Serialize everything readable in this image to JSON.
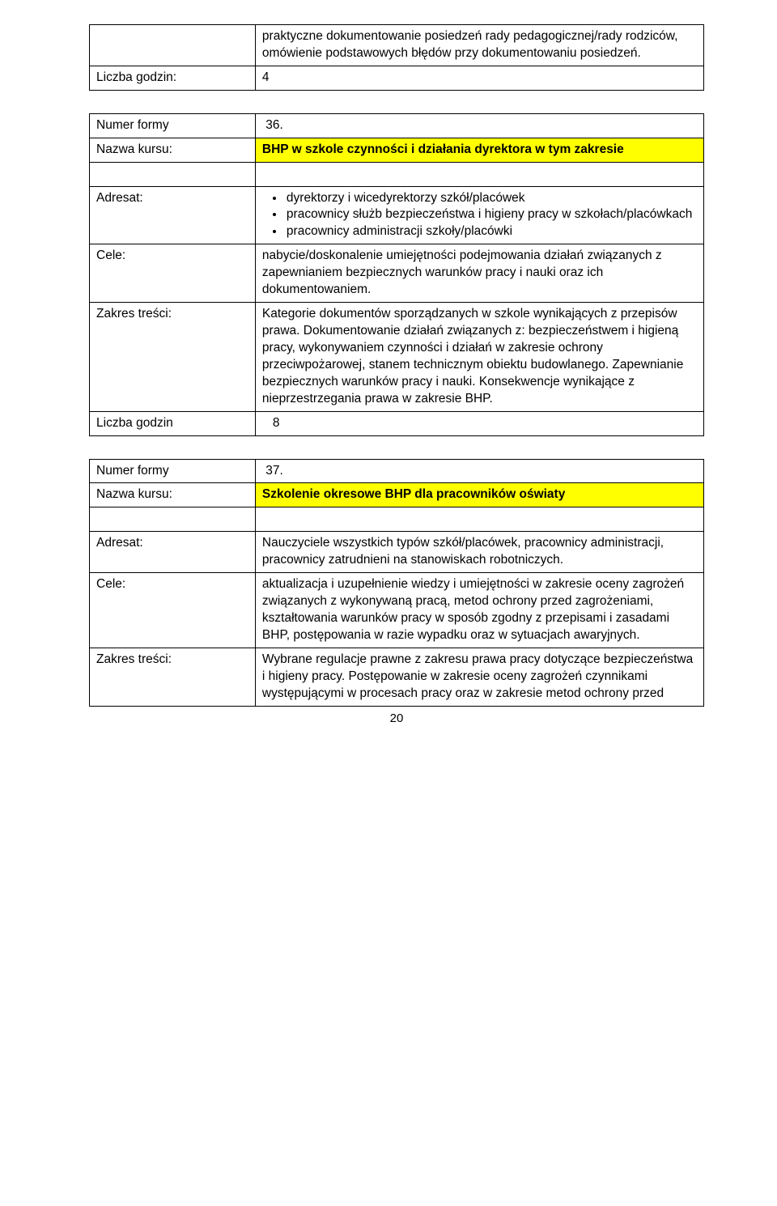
{
  "labels": {
    "liczba_godzin_colon": "Liczba godzin:",
    "liczba_godzin": "Liczba godzin",
    "numer_formy": "Numer formy",
    "nazwa_kursu": "Nazwa kursu:",
    "adresat": "Adresat:",
    "cele": "Cele:",
    "zakres": "Zakres treści:"
  },
  "block1": {
    "top_text": "praktyczne dokumentowanie posiedzeń rady pedagogicznej/rady rodziców, omówienie podstawowych błędów przy dokumentowaniu posiedzeń.",
    "hours": "4"
  },
  "block2": {
    "numer": "36.",
    "nazwa": "BHP w szkole czynności i działania dyrektora w tym zakresie",
    "adresat_items": [
      "dyrektorzy i wicedyrektorzy szkół/placówek",
      "pracownicy służb bezpieczeństwa i higieny pracy w szkołach/placówkach",
      "pracownicy administracji szkoły/placówki"
    ],
    "cele": "nabycie/doskonalenie umiejętności podejmowania działań związanych z zapewnianiem bezpiecznych warunków pracy i nauki oraz ich dokumentowaniem.",
    "zakres": "Kategorie dokumentów sporządzanych w szkole wynikających z przepisów prawa. Dokumentowanie działań związanych z: bezpieczeństwem i higieną pracy, wykonywaniem czynności i działań w zakresie ochrony przeciwpożarowej, stanem technicznym obiektu budowlanego. Zapewnianie bezpiecznych warunków pracy i nauki. Konsekwencje wynikające z nieprzestrzegania prawa w zakresie BHP.",
    "hours": "8"
  },
  "block3": {
    "numer": "37.",
    "nazwa": "Szkolenie okresowe BHP dla pracowników oświaty",
    "adresat": "Nauczyciele wszystkich typów szkół/placówek, pracownicy administracji, pracownicy zatrudnieni na stanowiskach robotniczych.",
    "cele": "aktualizacja  i uzupełnienie wiedzy i umiejętności w zakresie oceny zagrożeń związanych z wykonywaną pracą, metod ochrony przed zagrożeniami, kształtowania warunków pracy w sposób zgodny z przepisami i zasadami BHP, postępowania w razie wypadku oraz w sytuacjach awaryjnych.",
    "zakres": "Wybrane regulacje prawne z zakresu prawa pracy dotyczące bezpieczeństwa i higieny pracy. Postępowanie w zakresie oceny zagrożeń czynnikami występującymi w procesach pracy oraz w zakresie metod ochrony przed"
  },
  "page_number": "20"
}
